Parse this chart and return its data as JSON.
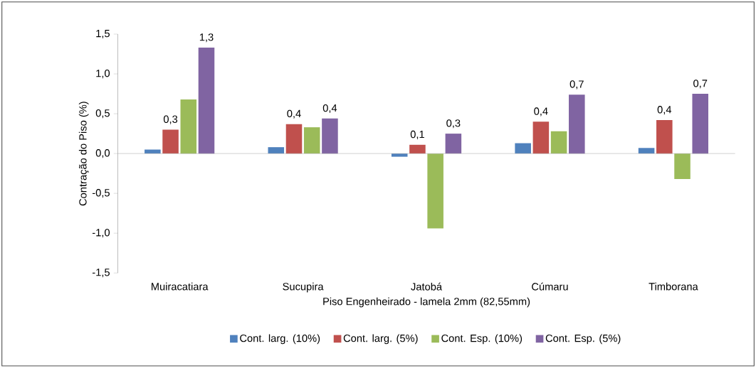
{
  "chart_data": {
    "type": "bar",
    "xlabel": "Piso Engenheirado - lamela 2mm (82,55mm)",
    "ylabel": "Contração do Piso (%)",
    "categories": [
      "Muiracatiara",
      "Sucupira",
      "Jatobá",
      "Cúmaru",
      "Timborana"
    ],
    "series": [
      {
        "name": "Cont. larg. (10%)",
        "color": "#4f81bd",
        "values": [
          0.05,
          0.08,
          -0.04,
          0.13,
          0.07
        ]
      },
      {
        "name": "Cont. larg. (5%)",
        "color": "#c0504d",
        "values": [
          0.3,
          0.37,
          0.11,
          0.4,
          0.42
        ],
        "value_labels": [
          "0,3",
          "0,4",
          "0,1",
          "0,4",
          "0,4"
        ]
      },
      {
        "name": "Cont. Esp. (10%)",
        "color": "#9bbb59",
        "values": [
          0.68,
          0.33,
          -0.94,
          0.28,
          -0.32
        ]
      },
      {
        "name": "Cont. Esp. (5%)",
        "color": "#8064a2",
        "values": [
          1.33,
          0.44,
          0.25,
          0.74,
          0.75
        ],
        "value_labels": [
          "1,3",
          "0,4",
          "0,3",
          "0,7",
          "0,7"
        ]
      }
    ],
    "ylim": [
      -1.5,
      1.5
    ],
    "yticks": [
      {
        "value": -1.5,
        "label": "-1,5"
      },
      {
        "value": -1.0,
        "label": "-1,0"
      },
      {
        "value": -0.5,
        "label": "-0,5"
      },
      {
        "value": 0,
        "label": "0,0"
      },
      {
        "value": 0.5,
        "label": "0,5"
      },
      {
        "value": 1.0,
        "label": "1,0"
      },
      {
        "value": 1.5,
        "label": "1,5"
      }
    ],
    "ref_lines": [
      {
        "axis": "y",
        "value": 0,
        "color": "#a6a6a6"
      }
    ],
    "grid": false,
    "legend": "bottom"
  }
}
